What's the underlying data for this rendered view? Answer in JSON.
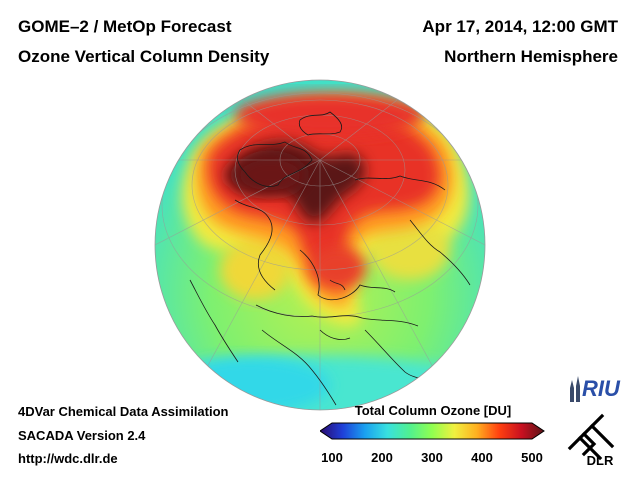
{
  "header": {
    "line1_left": "GOME–2 / MetOp Forecast",
    "line2_left": "Ozone Vertical Column Density",
    "line1_right": "Apr 17, 2014, 12:00 GMT",
    "line2_right": "Northern Hemisphere"
  },
  "footer": {
    "line1": "4DVar Chemical Data Assimilation",
    "line2": "SACADA Version 2.4",
    "line3": "http://wdc.dlr.de"
  },
  "colorbar": {
    "title": "Total Column Ozone [DU]",
    "ticks": [
      "100",
      "200",
      "300",
      "400",
      "500"
    ],
    "min": 100,
    "max": 500,
    "colors": [
      "#2a0a6e",
      "#1f3fd8",
      "#1aa0f0",
      "#38e0e0",
      "#50f090",
      "#90ff50",
      "#f0f040",
      "#ffb020",
      "#ff4010",
      "#c81020",
      "#5a1418"
    ]
  },
  "logos": {
    "riu": "RIU",
    "dlr": "DLR"
  },
  "map": {
    "projection": "orthographic",
    "hemisphere": "Northern Hemisphere",
    "background_color": "#8cf06a",
    "high_ozone_color": "#e83028",
    "max_ozone_color": "#5a1418"
  }
}
